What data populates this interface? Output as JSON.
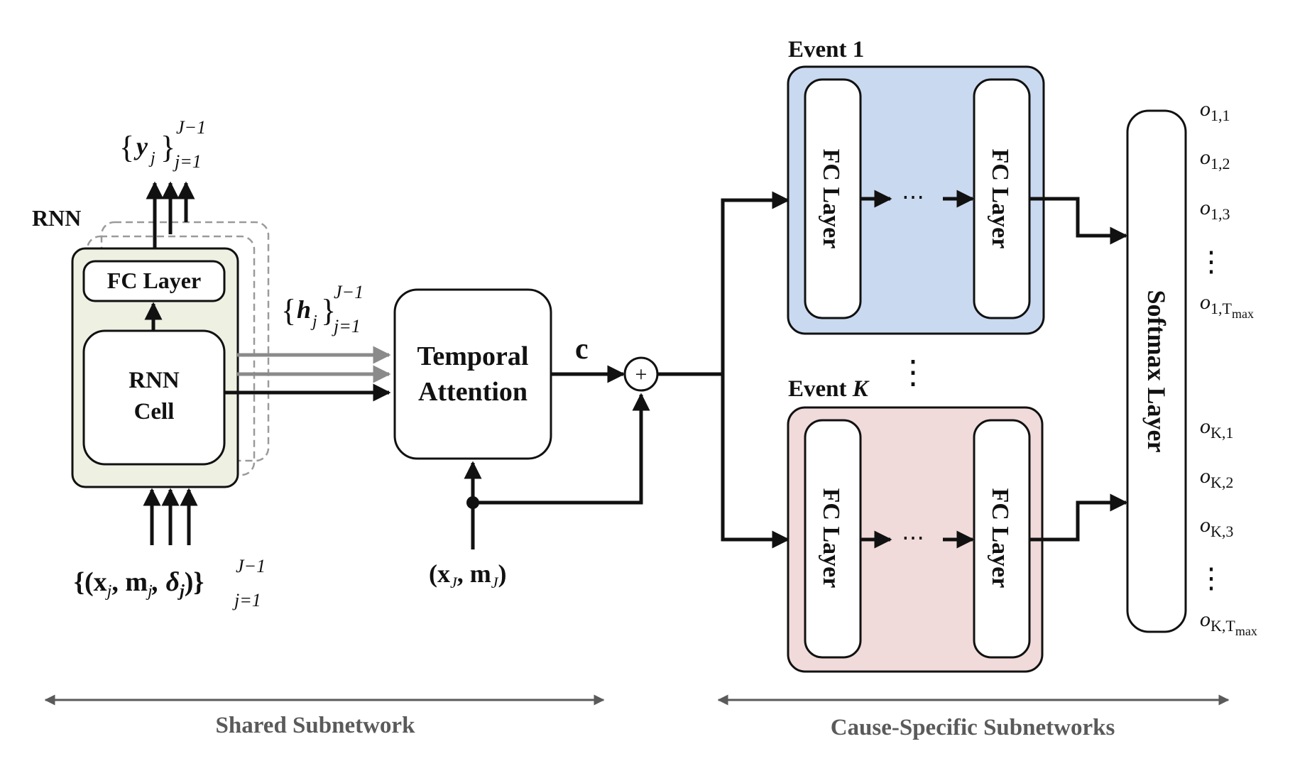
{
  "shared": {
    "rnn_label": "RNN",
    "fc_label": "FC Layer",
    "cell_line1": "RNN",
    "cell_line2": "Cell",
    "y_base": "{",
    "y_sym": "y",
    "y_sub": "j",
    "y_close": "}",
    "y_sup": "J−1",
    "y_lower": "j=1",
    "h_open": "{",
    "h_sym": "h",
    "h_sub": "j",
    "h_close": "}",
    "h_sup": "J−1",
    "h_lower": "j=1",
    "in_text": "{(x",
    "in_sub1": "j",
    "in_m": ", m",
    "in_sub2": "j",
    "in_delta": ", δ",
    "in_sub3": "j",
    "in_close": ")}",
    "in_sup": "J−1",
    "in_lower": "j=1",
    "section_label": "Shared Subnetwork"
  },
  "attention": {
    "line1": "Temporal",
    "line2": "Attention",
    "c_label": "c",
    "plus": "+",
    "xj_open": "(x",
    "xj_sub1": "J",
    "xj_m": ", m",
    "xj_sub2": "J",
    "xj_close": ")"
  },
  "cause": {
    "event1_label": "Event 1",
    "eventK_prefix": "Event ",
    "eventK_var": "K",
    "fc_label": "FC Layer",
    "ellipsis": "⋯",
    "vdots": "⋮",
    "softmax_label": "Softmax Layer",
    "section_label": "Cause-Specific Subnetworks",
    "event1_color": "#c9d9f0",
    "eventK_color": "#f1dada"
  },
  "outputs": {
    "o": "o",
    "event1": [
      "1,1",
      "1,2",
      "1,3"
    ],
    "event1_max": "1,T",
    "eventK": [
      "K,1",
      "K,2",
      "K,3"
    ],
    "eventK_max": "K,T",
    "max_sub": "max"
  },
  "colors": {
    "rnn_bg": "#eef0e2",
    "stroke": "#111111",
    "grey_arrow": "#8a8a8a",
    "section_grey": "#5a5a5a"
  }
}
